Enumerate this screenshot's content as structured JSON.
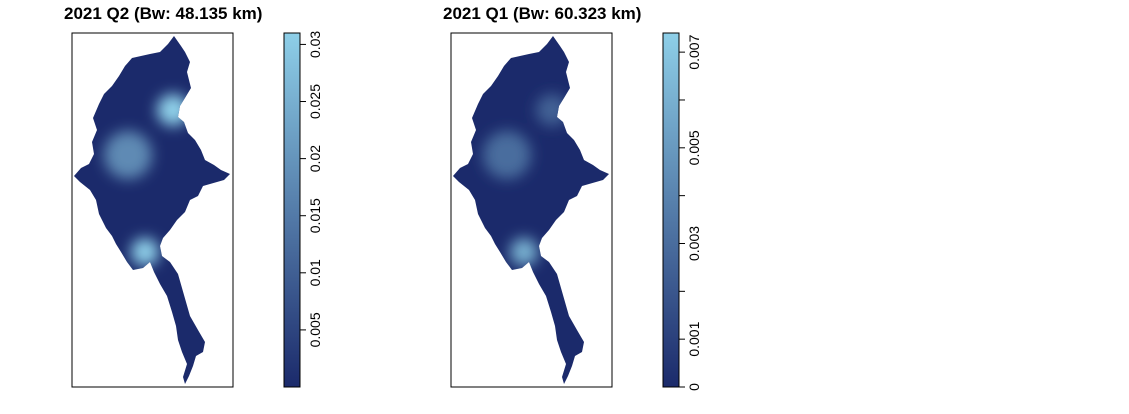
{
  "chart_data": [
    {
      "type": "heatmap",
      "title": "2021 Q2 (Bw: 48.135 km)",
      "xlabel": "",
      "ylabel": "",
      "color_scale": {
        "low_color": "#1b2a6b",
        "high_color": "#8ecfe8",
        "range": [
          0,
          0.031
        ],
        "ticks": [
          "0.005",
          "0.01",
          "0.015",
          "0.02",
          "0.025",
          "0.03"
        ],
        "tick_values": [
          0.005,
          0.01,
          0.015,
          0.02,
          0.025,
          0.03
        ]
      },
      "hotspots": [
        {
          "region": "north-east",
          "value": 0.031
        },
        {
          "region": "central",
          "value": 0.018
        },
        {
          "region": "south-delta",
          "value": 0.031
        }
      ]
    },
    {
      "type": "heatmap",
      "title": "2021 Q1 (Bw: 60.323 km)",
      "xlabel": "",
      "ylabel": "",
      "color_scale": {
        "low_color": "#1b2a6b",
        "high_color": "#8ecfe8",
        "range": [
          0,
          0.0074
        ],
        "ticks": [
          "0",
          "0.001",
          "0.003",
          "0.005",
          "0.007"
        ],
        "tick_values": [
          0,
          0.001,
          0.002,
          0.003,
          0.004,
          0.005,
          0.006,
          0.007
        ],
        "labeled_ticks": [
          0,
          0.001,
          0.003,
          0.005,
          0.007
        ]
      },
      "hotspots": [
        {
          "region": "north-east",
          "value": 0.0025
        },
        {
          "region": "central",
          "value": 0.003
        },
        {
          "region": "south-delta",
          "value": 0.006
        }
      ]
    }
  ]
}
